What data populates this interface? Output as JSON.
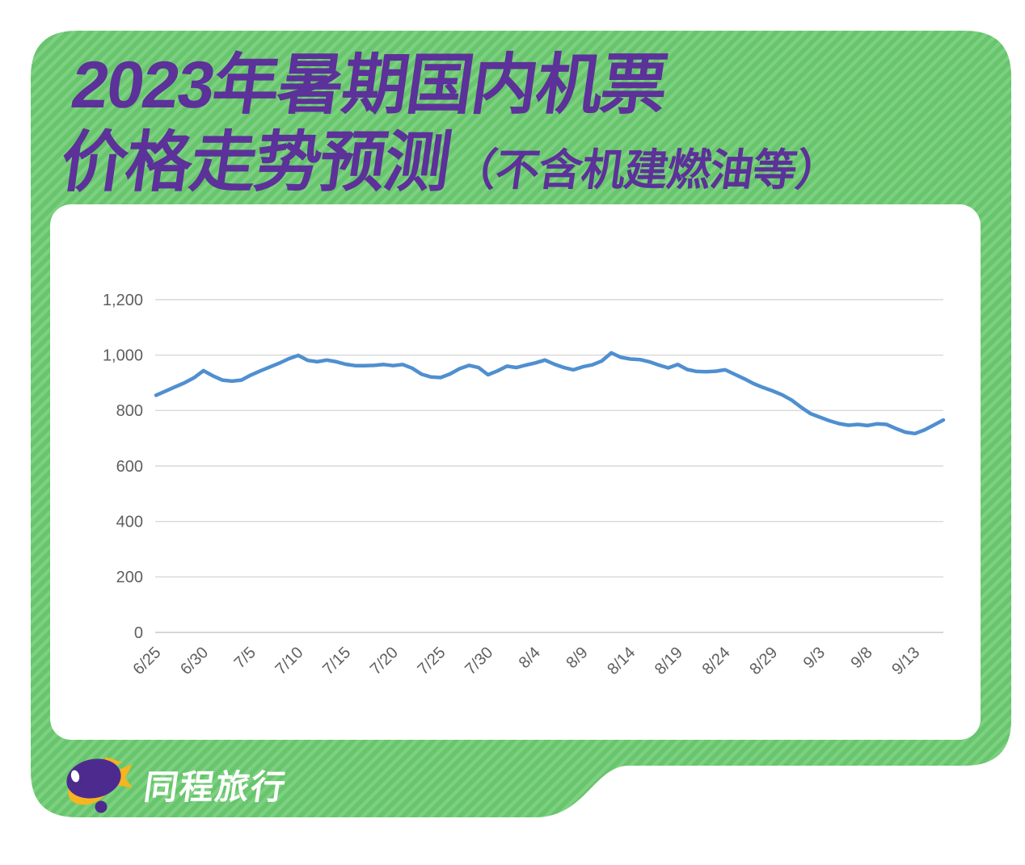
{
  "page": {
    "title_line1": "2023年暑期国内机票",
    "title_line2_main": "价格走势预测",
    "title_line2_note": "（不含机建燃油等）",
    "brand_name": "同程旅行",
    "colors": {
      "card_green": "#67c56b",
      "card_green_stripe": "#7dd082",
      "title_purple": "#5c3199",
      "line_blue": "#4f8fd0",
      "grid_gray": "#d9d9d9",
      "axis_text_gray": "#5f5f5f",
      "logo_purple": "#4d2b8e",
      "logo_yellow": "#f5b520"
    }
  },
  "chart_data": {
    "type": "line",
    "title": "2023年暑期国内机票价格走势预测（不含机建燃油等）",
    "xlabel": "",
    "ylabel": "",
    "ylim": [
      0,
      1200
    ],
    "grid": true,
    "legend": "none",
    "line_color": "#4f8fd0",
    "x_tick_every": 5,
    "y_ticks": [
      0,
      200,
      400,
      600,
      800,
      1000,
      1200
    ],
    "y_tick_labels": [
      "0",
      "200",
      "400",
      "600",
      "800",
      "1,000",
      "1,200"
    ],
    "x": [
      "6/25",
      "6/26",
      "6/27",
      "6/28",
      "6/29",
      "6/30",
      "7/1",
      "7/2",
      "7/3",
      "7/4",
      "7/5",
      "7/6",
      "7/7",
      "7/8",
      "7/9",
      "7/10",
      "7/11",
      "7/12",
      "7/13",
      "7/14",
      "7/15",
      "7/16",
      "7/17",
      "7/18",
      "7/19",
      "7/20",
      "7/21",
      "7/22",
      "7/23",
      "7/24",
      "7/25",
      "7/26",
      "7/27",
      "7/28",
      "7/29",
      "7/30",
      "7/31",
      "8/1",
      "8/2",
      "8/3",
      "8/4",
      "8/5",
      "8/6",
      "8/7",
      "8/8",
      "8/9",
      "8/10",
      "8/11",
      "8/12",
      "8/13",
      "8/14",
      "8/15",
      "8/16",
      "8/17",
      "8/18",
      "8/19",
      "8/20",
      "8/21",
      "8/22",
      "8/23",
      "8/24",
      "8/25",
      "8/26",
      "8/27",
      "8/28",
      "8/29",
      "8/30",
      "8/31",
      "9/1",
      "9/2",
      "9/3",
      "9/4",
      "9/5",
      "9/6",
      "9/7",
      "9/8",
      "9/9",
      "9/10",
      "9/11",
      "9/12",
      "9/13",
      "9/14",
      "9/15",
      "9/16"
    ],
    "values": [
      855,
      870,
      885,
      900,
      918,
      944,
      925,
      910,
      906,
      910,
      928,
      943,
      957,
      971,
      987,
      999,
      981,
      976,
      982,
      976,
      967,
      962,
      962,
      963,
      966,
      962,
      966,
      953,
      931,
      921,
      919,
      932,
      951,
      963,
      955,
      929,
      943,
      960,
      955,
      964,
      972,
      982,
      967,
      955,
      947,
      958,
      965,
      979,
      1008,
      992,
      986,
      984,
      976,
      964,
      954,
      966,
      948,
      941,
      940,
      942,
      947,
      931,
      915,
      897,
      883,
      871,
      857,
      838,
      812,
      789,
      776,
      763,
      753,
      747,
      750,
      746,
      752,
      750,
      735,
      722,
      717,
      730,
      748,
      766
    ]
  }
}
